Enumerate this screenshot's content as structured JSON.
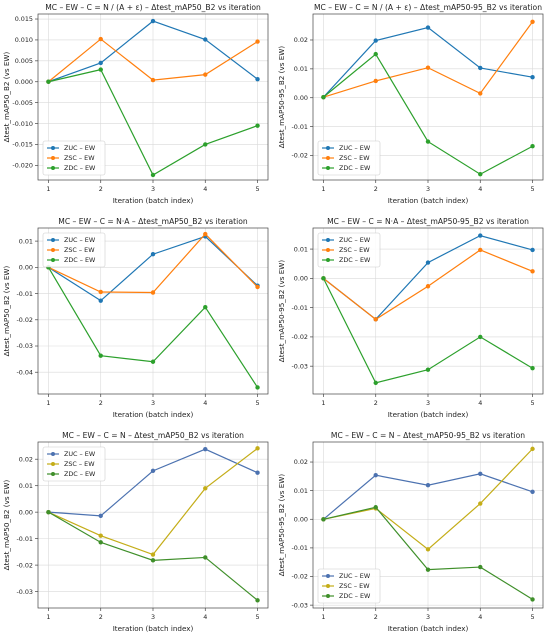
{
  "chart_data": [
    {
      "type": "line",
      "title": "MC – EW – C = N / (A + ε) – Δtest_mAP50_B2 vs iteration",
      "xlabel": "Iteration (batch index)",
      "ylabel": "Δtest_mAP50_B2 (vs EW)",
      "x": [
        1,
        2,
        3,
        4,
        5
      ],
      "xlim": [
        0.8,
        5.2
      ],
      "ylim": [
        -0.0235,
        0.0162
      ],
      "yticks": [
        -0.02,
        -0.015,
        -0.01,
        -0.005,
        0.0,
        0.005,
        0.01,
        0.015
      ],
      "ytick_labels": [
        "-0.020",
        "-0.015",
        "-0.010",
        "-0.005",
        "0.000",
        "0.005",
        "0.010",
        "0.015"
      ],
      "grid": true,
      "legend_position": "lower-left",
      "series": [
        {
          "name": "ZUC  –  EW",
          "color": "#1f77b4",
          "values": [
            0.0,
            0.0045,
            0.0145,
            0.0101,
            0.0006
          ]
        },
        {
          "name": "ZSC  –  EW",
          "color": "#ff7f0e",
          "values": [
            0.0,
            0.0102,
            0.0004,
            0.0017,
            0.0096
          ]
        },
        {
          "name": "ZDC  –  EW",
          "color": "#2ca02c",
          "values": [
            0.0,
            0.0029,
            -0.0223,
            -0.015,
            -0.0105
          ]
        }
      ]
    },
    {
      "type": "line",
      "title": "MC – EW – C = N / (A + ε) – Δtest_mAP50-95_B2 vs iteration",
      "xlabel": "Iteration (batch index)",
      "ylabel": "Δtest_mAP50-95_B2 (vs EW)",
      "x": [
        1,
        2,
        3,
        4,
        5
      ],
      "xlim": [
        0.8,
        5.2
      ],
      "ylim": [
        -0.0285,
        0.029
      ],
      "yticks": [
        -0.02,
        -0.01,
        0.0,
        0.01,
        0.02
      ],
      "ytick_labels": [
        "-0.02",
        "-0.01",
        "0.00",
        "0.01",
        "0.02"
      ],
      "grid": true,
      "legend_position": "lower-left",
      "series": [
        {
          "name": "ZUC  –  EW",
          "color": "#1f77b4",
          "values": [
            0.0002,
            0.0198,
            0.0243,
            0.0103,
            0.0071
          ]
        },
        {
          "name": "ZSC  –  EW",
          "color": "#ff7f0e",
          "values": [
            0.0002,
            0.0058,
            0.0104,
            0.0015,
            0.0263
          ]
        },
        {
          "name": "ZDC  –  EW",
          "color": "#2ca02c",
          "values": [
            0.0002,
            0.0151,
            -0.0152,
            -0.0265,
            -0.0168
          ]
        }
      ]
    },
    {
      "type": "line",
      "title": "MC – EW – C = N·A – Δtest_mAP50_B2 vs iteration",
      "xlabel": "Iteration (batch index)",
      "ylabel": "Δtest_mAP50_B2 (vs EW)",
      "x": [
        1,
        2,
        3,
        4,
        5
      ],
      "xlim": [
        0.8,
        5.2
      ],
      "ylim": [
        -0.0483,
        0.015
      ],
      "yticks": [
        -0.04,
        -0.03,
        -0.02,
        -0.01,
        0.0,
        0.01
      ],
      "ytick_labels": [
        "-0.04",
        "-0.03",
        "-0.02",
        "-0.01",
        "0.00",
        "0.01"
      ],
      "grid": true,
      "legend_position": "upper-left",
      "series": [
        {
          "name": "ZUC  –  EW",
          "color": "#1f77b4",
          "values": [
            0.0,
            -0.0127,
            0.005,
            0.0118,
            -0.007
          ]
        },
        {
          "name": "ZSC  –  EW",
          "color": "#ff7f0e",
          "values": [
            0.0,
            -0.0094,
            -0.0096,
            0.0127,
            -0.0075
          ]
        },
        {
          "name": "ZDC  –  EW",
          "color": "#2ca02c",
          "values": [
            0.0,
            -0.0337,
            -0.036,
            -0.0152,
            -0.0458
          ]
        }
      ]
    },
    {
      "type": "line",
      "title": "MC – EW – C = N·A – Δtest_mAP50-95_B2 vs iteration",
      "xlabel": "Iteration (batch index)",
      "ylabel": "Δtest_mAP50-95_B2 (vs EW)",
      "x": [
        1,
        2,
        3,
        4,
        5
      ],
      "xlim": [
        0.8,
        5.2
      ],
      "ylim": [
        -0.0395,
        0.0172
      ],
      "yticks": [
        -0.03,
        -0.02,
        -0.01,
        0.0,
        0.01
      ],
      "ytick_labels": [
        "-0.03",
        "-0.02",
        "-0.01",
        "0.00",
        "0.01"
      ],
      "grid": true,
      "legend_position": "upper-left",
      "series": [
        {
          "name": "ZUC  –  EW",
          "color": "#1f77b4",
          "values": [
            0.0,
            -0.014,
            0.0054,
            0.0146,
            0.0097
          ]
        },
        {
          "name": "ZSC  –  EW",
          "color": "#ff7f0e",
          "values": [
            0.0,
            -0.014,
            -0.0027,
            0.0097,
            0.0024
          ]
        },
        {
          "name": "ZDC  –  EW",
          "color": "#2ca02c",
          "values": [
            0.0,
            -0.0357,
            -0.0312,
            -0.02,
            -0.0307
          ]
        }
      ]
    },
    {
      "type": "line",
      "title": "MC – EW – C = N – Δtest_mAP50_B2 vs iteration",
      "xlabel": "Iteration (batch index)",
      "ylabel": "Δtest_mAP50_B2 (vs EW)",
      "x": [
        1,
        2,
        3,
        4,
        5
      ],
      "xlim": [
        0.8,
        5.2
      ],
      "ylim": [
        -0.0362,
        0.0265
      ],
      "yticks": [
        -0.03,
        -0.02,
        -0.01,
        0.0,
        0.01,
        0.02
      ],
      "ytick_labels": [
        "-0.03",
        "-0.02",
        "-0.01",
        "0.00",
        "0.01",
        "0.02"
      ],
      "grid": true,
      "legend_position": "upper-left",
      "series": [
        {
          "name": "ZUC  –  EW",
          "color": "#4c72b0",
          "values": [
            0.0,
            -0.0014,
            0.0156,
            0.0238,
            0.0149
          ]
        },
        {
          "name": "ZSC  –  EW",
          "color": "#c4ad18",
          "values": [
            0.0,
            -0.0089,
            -0.016,
            0.009,
            0.0241
          ]
        },
        {
          "name": "ZDC  –  EW",
          "color": "#3f8f2a",
          "values": [
            0.0,
            -0.0114,
            -0.0182,
            -0.0171,
            -0.0333
          ]
        }
      ]
    },
    {
      "type": "line",
      "title": "MC – EW – C = N – Δtest_mAP50-95_B2 vs iteration",
      "xlabel": "Iteration (batch index)",
      "ylabel": "Δtest_mAP50-95_B2 (vs EW)",
      "x": [
        1,
        2,
        3,
        4,
        5
      ],
      "xlim": [
        0.8,
        5.2
      ],
      "ylim": [
        -0.031,
        0.027
      ],
      "yticks": [
        -0.03,
        -0.02,
        -0.01,
        0.0,
        0.01,
        0.02
      ],
      "ytick_labels": [
        "-0.03",
        "-0.02",
        "-0.01",
        "0.00",
        "0.01",
        "0.02"
      ],
      "grid": true,
      "legend_position": "lower-left",
      "series": [
        {
          "name": "ZUC  –  EW",
          "color": "#4c72b0",
          "values": [
            0.0,
            0.0154,
            0.0119,
            0.0159,
            0.0096
          ]
        },
        {
          "name": "ZSC  –  EW",
          "color": "#c4ad18",
          "values": [
            0.0,
            0.0038,
            -0.0105,
            0.0055,
            0.0246
          ]
        },
        {
          "name": "ZDC  –  EW",
          "color": "#3f8f2a",
          "values": [
            0.0,
            0.0042,
            -0.0176,
            -0.0167,
            -0.028
          ]
        }
      ]
    }
  ]
}
